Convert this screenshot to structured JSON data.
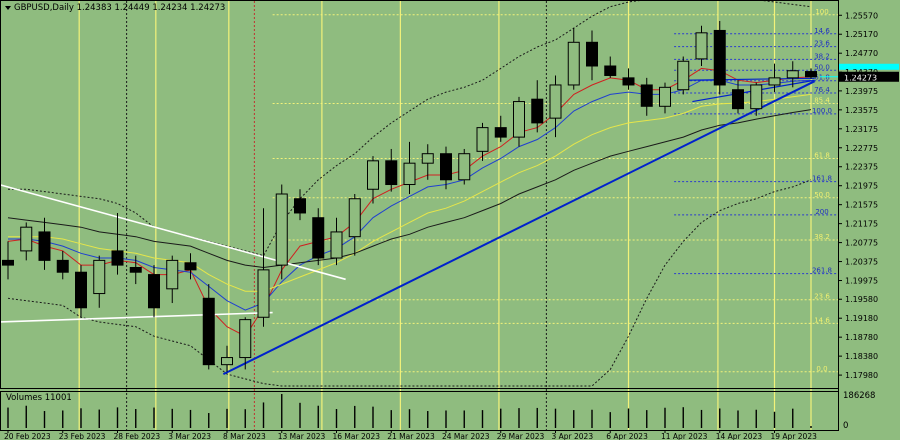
{
  "header": {
    "title": "GBPUSD,Daily  1.24383 1.24449 1.24234 1.24273"
  },
  "volume_panel": {
    "label": "Volumes 11001",
    "max_label": "186268",
    "zero_label": "0"
  },
  "colors": {
    "background": "#8fbc7f",
    "bull_candle": "#8fbc7f",
    "bear_candle": "#000000",
    "price_highlight": "#00ffff",
    "trend_line": "#0022cc",
    "channel_line": "#ffffff",
    "ma_red": "#d02020",
    "ma_blue": "#2040d0",
    "ma_yellow": "#e6e64a",
    "ma_black": "#1a1a1a",
    "fib_yellow": "#f2f27a",
    "fib_blue": "#2a3ad0"
  },
  "current_price": {
    "value": 1.24273,
    "label": "1.24273"
  },
  "fib_levels": [
    {
      "label": "100",
      "price": 1.2558,
      "color": "yellow"
    },
    {
      "label": "14.6",
      "price": 1.2518,
      "color": "blue"
    },
    {
      "label": "23.6",
      "price": 1.2491,
      "color": "blue"
    },
    {
      "label": "38.2",
      "price": 1.2464,
      "color": "blue"
    },
    {
      "label": "50.0",
      "price": 1.2441,
      "color": "blue"
    },
    {
      "label": "61.8",
      "price": 1.2419,
      "color": "blue"
    },
    {
      "label": "76.4",
      "price": 1.2393,
      "color": "blue"
    },
    {
      "label": "85.4",
      "price": 1.2371,
      "color": "yellow"
    },
    {
      "label": "100.0",
      "price": 1.2349,
      "color": "blue"
    },
    {
      "label": "61.8",
      "price": 1.2255,
      "color": "yellow"
    },
    {
      "label": "161.8",
      "price": 1.2206,
      "color": "blue"
    },
    {
      "label": "50.0",
      "price": 1.2172,
      "color": "yellow"
    },
    {
      "label": "200",
      "price": 1.2136,
      "color": "blue"
    },
    {
      "label": "38.2",
      "price": 1.2083,
      "color": "yellow"
    },
    {
      "label": "261.8",
      "price": 1.2012,
      "color": "blue"
    },
    {
      "label": "23.6",
      "price": 1.1957,
      "color": "yellow"
    },
    {
      "label": "14.6",
      "price": 1.1907,
      "color": "yellow"
    },
    {
      "label": "0.0",
      "price": 1.1805,
      "color": "yellow"
    }
  ],
  "chart_data": {
    "type": "candlestick",
    "title": "GBPUSD,Daily",
    "ylim": [
      1.1775,
      1.2585
    ],
    "y_tick_labels": [
      "1.25570",
      "1.25170",
      "1.24770",
      "1.24370",
      "1.23975",
      "1.23575",
      "1.23175",
      "1.22775",
      "1.22375",
      "1.21975",
      "1.21575",
      "1.21175",
      "1.20775",
      "1.20375",
      "1.19975",
      "1.19580",
      "1.19180",
      "1.18780",
      "1.18380",
      "1.17980"
    ],
    "x_labels": [
      {
        "label": "20 Feb 2023",
        "index": 0
      },
      {
        "label": "23 Feb 2023",
        "index": 3
      },
      {
        "label": "28 Feb 2023",
        "index": 6
      },
      {
        "label": "3 Mar 2023",
        "index": 9
      },
      {
        "label": "8 Mar 2023",
        "index": 12
      },
      {
        "label": "13 Mar 2023",
        "index": 15
      },
      {
        "label": "16 Mar 2023",
        "index": 18
      },
      {
        "label": "21 Mar 2023",
        "index": 21
      },
      {
        "label": "24 Mar 2023",
        "index": 24
      },
      {
        "label": "29 Mar 2023",
        "index": 27
      },
      {
        "label": "3 Apr 2023",
        "index": 30
      },
      {
        "label": "6 Apr 2023",
        "index": 33
      },
      {
        "label": "11 Apr 2023",
        "index": 36
      },
      {
        "label": "14 Apr 2023",
        "index": 39
      },
      {
        "label": "19 Apr 2023",
        "index": 42
      }
    ],
    "candles": [
      {
        "o": 1.204,
        "h": 1.208,
        "l": 1.2,
        "c": 1.203
      },
      {
        "o": 1.206,
        "h": 1.212,
        "l": 1.204,
        "c": 1.211
      },
      {
        "o": 1.21,
        "h": 1.213,
        "l": 1.202,
        "c": 1.204
      },
      {
        "o": 1.204,
        "h": 1.206,
        "l": 1.2,
        "c": 1.2015
      },
      {
        "o": 1.2015,
        "h": 1.203,
        "l": 1.192,
        "c": 1.194
      },
      {
        "o": 1.197,
        "h": 1.205,
        "l": 1.194,
        "c": 1.204
      },
      {
        "o": 1.206,
        "h": 1.214,
        "l": 1.201,
        "c": 1.203
      },
      {
        "o": 1.2025,
        "h": 1.205,
        "l": 1.199,
        "c": 1.2015
      },
      {
        "o": 1.201,
        "h": 1.203,
        "l": 1.192,
        "c": 1.194
      },
      {
        "o": 1.198,
        "h": 1.205,
        "l": 1.195,
        "c": 1.204
      },
      {
        "o": 1.2035,
        "h": 1.2055,
        "l": 1.2,
        "c": 1.202
      },
      {
        "o": 1.196,
        "h": 1.199,
        "l": 1.181,
        "c": 1.182
      },
      {
        "o": 1.182,
        "h": 1.186,
        "l": 1.1805,
        "c": 1.1835
      },
      {
        "o": 1.1835,
        "h": 1.192,
        "l": 1.181,
        "c": 1.1915
      },
      {
        "o": 1.192,
        "h": 1.215,
        "l": 1.19,
        "c": 1.202
      },
      {
        "o": 1.203,
        "h": 1.22,
        "l": 1.2,
        "c": 1.218
      },
      {
        "o": 1.217,
        "h": 1.219,
        "l": 1.2125,
        "c": 1.214
      },
      {
        "o": 1.213,
        "h": 1.215,
        "l": 1.203,
        "c": 1.2045
      },
      {
        "o": 1.2045,
        "h": 1.213,
        "l": 1.203,
        "c": 1.21
      },
      {
        "o": 1.209,
        "h": 1.218,
        "l": 1.205,
        "c": 1.217
      },
      {
        "o": 1.219,
        "h": 1.226,
        "l": 1.216,
        "c": 1.225
      },
      {
        "o": 1.225,
        "h": 1.2275,
        "l": 1.2185,
        "c": 1.22
      },
      {
        "o": 1.22,
        "h": 1.229,
        "l": 1.218,
        "c": 1.2245
      },
      {
        "o": 1.2245,
        "h": 1.2285,
        "l": 1.221,
        "c": 1.2265
      },
      {
        "o": 1.2265,
        "h": 1.228,
        "l": 1.219,
        "c": 1.221
      },
      {
        "o": 1.221,
        "h": 1.2275,
        "l": 1.22,
        "c": 1.2265
      },
      {
        "o": 1.227,
        "h": 1.233,
        "l": 1.225,
        "c": 1.232
      },
      {
        "o": 1.232,
        "h": 1.2345,
        "l": 1.229,
        "c": 1.23
      },
      {
        "o": 1.23,
        "h": 1.2385,
        "l": 1.228,
        "c": 1.2375
      },
      {
        "o": 1.238,
        "h": 1.242,
        "l": 1.231,
        "c": 1.233
      },
      {
        "o": 1.234,
        "h": 1.243,
        "l": 1.23,
        "c": 1.241
      },
      {
        "o": 1.241,
        "h": 1.253,
        "l": 1.24,
        "c": 1.25
      },
      {
        "o": 1.25,
        "h": 1.2525,
        "l": 1.242,
        "c": 1.245
      },
      {
        "o": 1.245,
        "h": 1.247,
        "l": 1.2425,
        "c": 1.243
      },
      {
        "o": 1.2425,
        "h": 1.2445,
        "l": 1.24,
        "c": 1.241
      },
      {
        "o": 1.241,
        "h": 1.2425,
        "l": 1.2345,
        "c": 1.2365
      },
      {
        "o": 1.2365,
        "h": 1.2415,
        "l": 1.235,
        "c": 1.2405
      },
      {
        "o": 1.24,
        "h": 1.247,
        "l": 1.239,
        "c": 1.246
      },
      {
        "o": 1.2465,
        "h": 1.2535,
        "l": 1.245,
        "c": 1.252
      },
      {
        "o": 1.2525,
        "h": 1.2545,
        "l": 1.239,
        "c": 1.241
      },
      {
        "o": 1.24,
        "h": 1.242,
        "l": 1.235,
        "c": 1.236
      },
      {
        "o": 1.236,
        "h": 1.2415,
        "l": 1.2345,
        "c": 1.241
      },
      {
        "o": 1.241,
        "h": 1.2455,
        "l": 1.2395,
        "c": 1.2425
      },
      {
        "o": 1.2425,
        "h": 1.246,
        "l": 1.2405,
        "c": 1.244
      },
      {
        "o": 1.24383,
        "h": 1.24449,
        "l": 1.24234,
        "c": 1.24273
      }
    ],
    "volumes": [
      112000,
      122000,
      93000,
      96000,
      108000,
      101000,
      113000,
      104000,
      112000,
      105000,
      99000,
      82000,
      105000,
      103000,
      140000,
      186268,
      138000,
      122000,
      104000,
      121000,
      117000,
      98000,
      103000,
      93000,
      96000,
      96000,
      98000,
      106000,
      109000,
      110000,
      106000,
      98000,
      100000,
      87000,
      107000,
      98000,
      111000,
      114000,
      99000,
      107000,
      96000,
      100000,
      89000,
      106000,
      11001
    ],
    "moving_averages": [
      {
        "name": "red",
        "values": [
          1.208,
          1.2085,
          1.207,
          1.206,
          1.203,
          1.203,
          1.204,
          1.2035,
          1.201,
          1.201,
          1.202,
          1.194,
          1.19,
          1.188,
          1.194,
          1.202,
          1.207,
          1.208,
          1.209,
          1.212,
          1.217,
          1.219,
          1.2205,
          1.222,
          1.222,
          1.223,
          1.226,
          1.228,
          1.231,
          1.232,
          1.235,
          1.239,
          1.241,
          1.2425,
          1.242,
          1.24,
          1.24,
          1.242,
          1.2445,
          1.244,
          1.242,
          1.2415,
          1.242,
          1.2425,
          1.2427
        ]
      },
      {
        "name": "blue",
        "values": [
          1.2085,
          1.2085,
          1.208,
          1.207,
          1.2055,
          1.2045,
          1.2045,
          1.204,
          1.2025,
          1.202,
          1.2015,
          1.1985,
          1.1955,
          1.1935,
          1.195,
          1.1995,
          1.203,
          1.205,
          1.2065,
          1.209,
          1.213,
          1.2155,
          1.2175,
          1.2195,
          1.22,
          1.221,
          1.2235,
          1.2255,
          1.228,
          1.2295,
          1.232,
          1.2355,
          1.2375,
          1.239,
          1.2395,
          1.239,
          1.239,
          1.24,
          1.242,
          1.242,
          1.241,
          1.241,
          1.2413,
          1.2418,
          1.242
        ]
      },
      {
        "name": "yellow",
        "values": [
          1.209,
          1.209,
          1.209,
          1.2085,
          1.2075,
          1.2065,
          1.206,
          1.2055,
          1.2045,
          1.204,
          1.2035,
          1.201,
          1.199,
          1.1975,
          1.1975,
          1.199,
          1.2005,
          1.202,
          1.2035,
          1.2055,
          1.208,
          1.21,
          1.212,
          1.214,
          1.215,
          1.2165,
          1.2185,
          1.2205,
          1.2225,
          1.224,
          1.226,
          1.2285,
          1.2305,
          1.232,
          1.233,
          1.2335,
          1.234,
          1.235,
          1.2365,
          1.237,
          1.2372,
          1.2375,
          1.238,
          1.2385,
          1.239
        ]
      },
      {
        "name": "black",
        "values": [
          1.213,
          1.2125,
          1.212,
          1.2115,
          1.211,
          1.21,
          1.2095,
          1.209,
          1.208,
          1.2075,
          1.207,
          1.2055,
          1.204,
          1.203,
          1.2025,
          1.203,
          1.2035,
          1.204,
          1.2045,
          1.2055,
          1.207,
          1.2085,
          1.2095,
          1.211,
          1.212,
          1.213,
          1.2145,
          1.216,
          1.218,
          1.2195,
          1.221,
          1.223,
          1.2245,
          1.226,
          1.227,
          1.228,
          1.229,
          1.23,
          1.2315,
          1.2325,
          1.233,
          1.2338,
          1.2345,
          1.2352,
          1.2358
        ]
      }
    ],
    "bollinger_bands": {
      "upper": [
        1.219,
        1.219,
        1.2185,
        1.218,
        1.2175,
        1.217,
        1.216,
        1.214,
        1.211,
        1.21,
        1.209,
        1.208,
        1.207,
        1.206,
        1.205,
        1.212,
        1.217,
        1.221,
        1.224,
        1.2265,
        1.23,
        1.233,
        1.2355,
        1.238,
        1.2395,
        1.2405,
        1.242,
        1.2445,
        1.247,
        1.249,
        1.2505,
        1.253,
        1.2555,
        1.2575,
        1.2585,
        1.259,
        1.2595,
        1.26,
        1.261,
        1.261,
        1.26,
        1.259,
        1.2585,
        1.258,
        1.2575
      ],
      "lower": [
        1.196,
        1.1955,
        1.195,
        1.1945,
        1.192,
        1.191,
        1.1905,
        1.19,
        1.188,
        1.187,
        1.186,
        1.183,
        1.18,
        1.179,
        1.178,
        1.1775,
        1.1775,
        1.1775,
        1.1775,
        1.1775,
        1.1775,
        1.1775,
        1.1775,
        1.1775,
        1.1775,
        1.1775,
        1.1775,
        1.1775,
        1.1775,
        1.1775,
        1.1775,
        1.1775,
        1.1775,
        1.181,
        1.188,
        1.196,
        1.203,
        1.208,
        1.212,
        1.2145,
        1.216,
        1.217,
        1.2185,
        1.2195,
        1.221
      ]
    },
    "trend_line": {
      "from": {
        "index": 11.8,
        "price": 1.18
      },
      "to": {
        "index": 44.2,
        "price": 1.2418
      }
    },
    "channel_upper": {
      "from": {
        "index": -0.5,
        "price": 1.22
      },
      "to": {
        "index": 18.5,
        "price": 1.2
      }
    },
    "channel_lower": {
      "from": {
        "index": -0.5,
        "price": 1.191
      },
      "to": {
        "index": 14.5,
        "price": 1.193
      }
    },
    "converging_lines": [
      {
        "from": {
          "index": 37.0,
          "price": 1.242
        },
        "to": {
          "index": 44.2,
          "price": 1.2424
        }
      },
      {
        "from": {
          "index": 37.5,
          "price": 1.2375
        },
        "to": {
          "index": 44.2,
          "price": 1.242
        }
      }
    ],
    "vertical_markers": [
      {
        "index": 3.9,
        "style": "yellow"
      },
      {
        "index": 6.5,
        "style": "black-dashed"
      },
      {
        "index": 8.1,
        "style": "yellow"
      },
      {
        "index": 12.1,
        "style": "yellow"
      },
      {
        "index": 13.5,
        "style": "red-dashed"
      },
      {
        "index": 17.2,
        "style": "yellow"
      },
      {
        "index": 21.5,
        "style": "yellow"
      },
      {
        "index": 26.9,
        "style": "yellow"
      },
      {
        "index": 29.5,
        "style": "black-dashed"
      },
      {
        "index": 34.0,
        "style": "yellow"
      },
      {
        "index": 38.9,
        "style": "yellow"
      },
      {
        "index": 42.0,
        "style": "yellow"
      },
      {
        "index": 44.0,
        "style": "yellow"
      }
    ]
  }
}
